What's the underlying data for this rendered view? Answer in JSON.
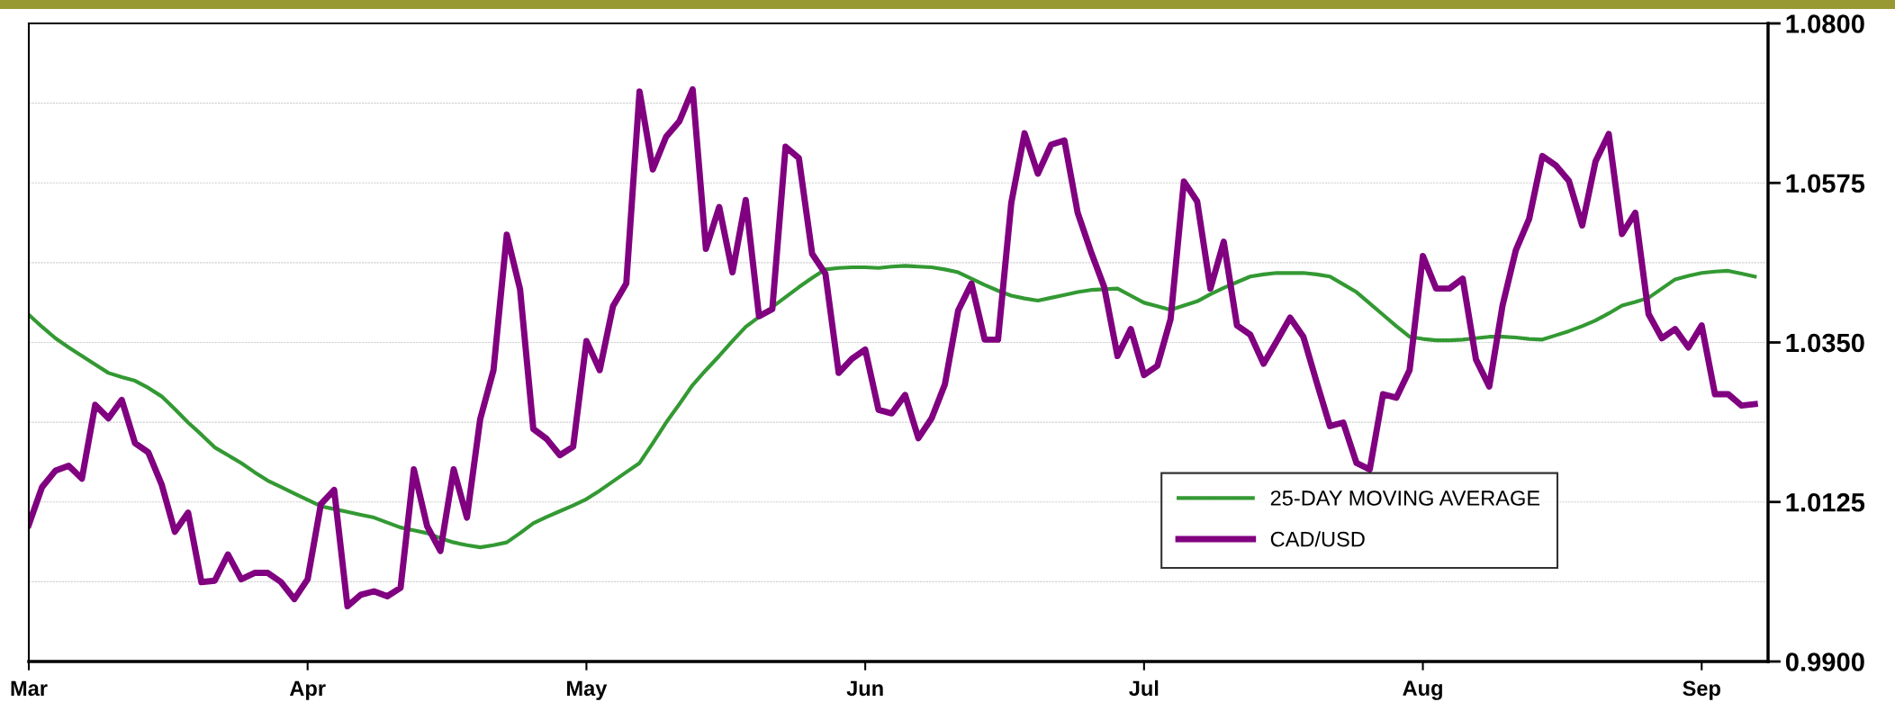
{
  "chart_data": {
    "type": "line",
    "categories": [
      "Mar",
      null,
      null,
      null,
      null,
      null,
      null,
      null,
      null,
      null,
      null,
      null,
      null,
      null,
      null,
      null,
      null,
      null,
      null,
      null,
      null,
      "Apr",
      null,
      null,
      null,
      null,
      null,
      null,
      null,
      null,
      null,
      null,
      null,
      null,
      null,
      null,
      null,
      null,
      null,
      null,
      null,
      null,
      "May",
      null,
      null,
      null,
      null,
      null,
      null,
      null,
      null,
      null,
      null,
      null,
      null,
      null,
      null,
      null,
      null,
      null,
      null,
      null,
      null,
      "Jun",
      null,
      null,
      null,
      null,
      null,
      null,
      null,
      null,
      null,
      null,
      null,
      null,
      null,
      null,
      null,
      null,
      null,
      null,
      null,
      null,
      "Jul",
      null,
      null,
      null,
      null,
      null,
      null,
      null,
      null,
      null,
      null,
      null,
      null,
      null,
      null,
      null,
      null,
      null,
      null,
      null,
      null,
      "Aug",
      null,
      null,
      null,
      null,
      null,
      null,
      null,
      null,
      null,
      null,
      null,
      null,
      null,
      null,
      null,
      null,
      null,
      null,
      null,
      null,
      "Sep",
      null,
      null,
      null,
      null
    ],
    "ylim": [
      0.99,
      1.08
    ],
    "yticks": [
      {
        "value": 0.99,
        "label": "0.9900"
      },
      {
        "value": 1.0125,
        "label": "1.0125"
      },
      {
        "value": 1.035,
        "label": "1.0350"
      },
      {
        "value": 1.0575,
        "label": "1.0575"
      },
      {
        "value": 1.08,
        "label": "1.0800"
      },
      {
        "value": 1.00125,
        "label": null
      },
      {
        "value": 1.02375,
        "label": null
      },
      {
        "value": 1.04625,
        "label": null
      },
      {
        "value": 1.06875,
        "label": null
      }
    ],
    "grid": "y",
    "legend": "bottom right",
    "series": [
      {
        "name": "25-DAY MOVING AVERAGE",
        "color": "#339933",
        "values": [
          1.0389,
          1.0372,
          1.0356,
          1.0343,
          1.0331,
          1.0319,
          1.0307,
          1.0301,
          1.0296,
          1.0286,
          1.0274,
          1.0256,
          1.0237,
          1.022,
          1.0202,
          1.0191,
          1.018,
          1.0167,
          1.0155,
          1.0146,
          1.0137,
          1.0128,
          1.0119,
          1.0115,
          1.0111,
          1.0107,
          1.0103,
          1.0096,
          1.0089,
          1.0085,
          1.0081,
          1.0074,
          1.0068,
          1.0064,
          1.0061,
          1.0064,
          1.0068,
          1.0081,
          1.0095,
          1.0104,
          1.0112,
          1.012,
          1.0129,
          1.0141,
          1.0154,
          1.0167,
          1.018,
          1.0208,
          1.0237,
          1.0263,
          1.029,
          1.0311,
          1.0331,
          1.0352,
          1.0372,
          1.0386,
          1.04,
          1.0414,
          1.0428,
          1.0441,
          1.0453,
          1.0455,
          1.0456,
          1.0456,
          1.0455,
          1.0457,
          1.0458,
          1.0457,
          1.0456,
          1.0453,
          1.0449,
          1.044,
          1.0431,
          1.0423,
          1.0416,
          1.0412,
          1.0409,
          1.0413,
          1.0417,
          1.0421,
          1.0424,
          1.0425,
          1.0426,
          1.0416,
          1.0406,
          1.0401,
          1.0396,
          1.0402,
          1.0408,
          1.0418,
          1.0427,
          1.0435,
          1.0443,
          1.0446,
          1.0448,
          1.0448,
          1.0448,
          1.0446,
          1.0443,
          1.0432,
          1.0421,
          1.0405,
          1.0389,
          1.0373,
          1.0358,
          1.0355,
          1.0353,
          1.0353,
          1.0354,
          1.0356,
          1.0358,
          1.0358,
          1.0357,
          1.0355,
          1.0354,
          1.036,
          1.0366,
          1.0373,
          1.0381,
          1.0391,
          1.0402,
          1.0407,
          1.0413,
          1.0426,
          1.0439,
          1.0444,
          1.0448,
          1.045,
          1.0451,
          1.0447,
          1.0443
        ]
      },
      {
        "name": "CAD/USD",
        "color": "#800080",
        "values": [
          1.0093,
          1.0146,
          1.0169,
          1.0176,
          1.0158,
          1.0262,
          1.0243,
          1.0269,
          1.0208,
          1.0195,
          1.015,
          1.0083,
          1.011,
          1.0012,
          1.0014,
          1.0051,
          1.0016,
          1.0025,
          1.0025,
          1.0012,
          0.9988,
          1.0016,
          1.0122,
          1.0142,
          0.9978,
          0.9994,
          0.9999,
          0.9992,
          1.0004,
          1.0171,
          1.0091,
          1.0056,
          1.0171,
          1.0103,
          1.0242,
          1.0311,
          1.0502,
          1.0425,
          1.0228,
          1.0214,
          1.0191,
          1.0203,
          1.0352,
          1.0311,
          1.0401,
          1.0433,
          1.0704,
          1.0594,
          1.064,
          1.0662,
          1.0707,
          1.0482,
          1.0541,
          1.0449,
          1.0551,
          1.0387,
          1.0397,
          1.0626,
          1.061,
          1.0475,
          1.0447,
          1.0307,
          1.0327,
          1.034,
          1.0255,
          1.025,
          1.0276,
          1.0215,
          1.0243,
          1.0291,
          1.0395,
          1.0433,
          1.0354,
          1.0354,
          1.0547,
          1.0645,
          1.0588,
          1.0629,
          1.0635,
          1.0533,
          1.0478,
          1.0428,
          1.0331,
          1.0369,
          1.0304,
          1.0317,
          1.0383,
          1.0577,
          1.0549,
          1.0426,
          1.0492,
          1.0374,
          1.0361,
          1.032,
          1.0352,
          1.0385,
          1.0358,
          1.0294,
          1.0232,
          1.0237,
          1.018,
          1.0171,
          1.0277,
          1.0272,
          1.0311,
          1.0472,
          1.0426,
          1.0426,
          1.044,
          1.0326,
          1.0288,
          1.0402,
          1.048,
          1.0524,
          1.0613,
          1.06,
          1.0578,
          1.0515,
          1.0605,
          1.0644,
          1.0503,
          1.0533,
          1.039,
          1.0356,
          1.0369,
          1.0343,
          1.0374,
          1.0277,
          1.0277,
          1.0261,
          1.0263
        ]
      }
    ]
  }
}
